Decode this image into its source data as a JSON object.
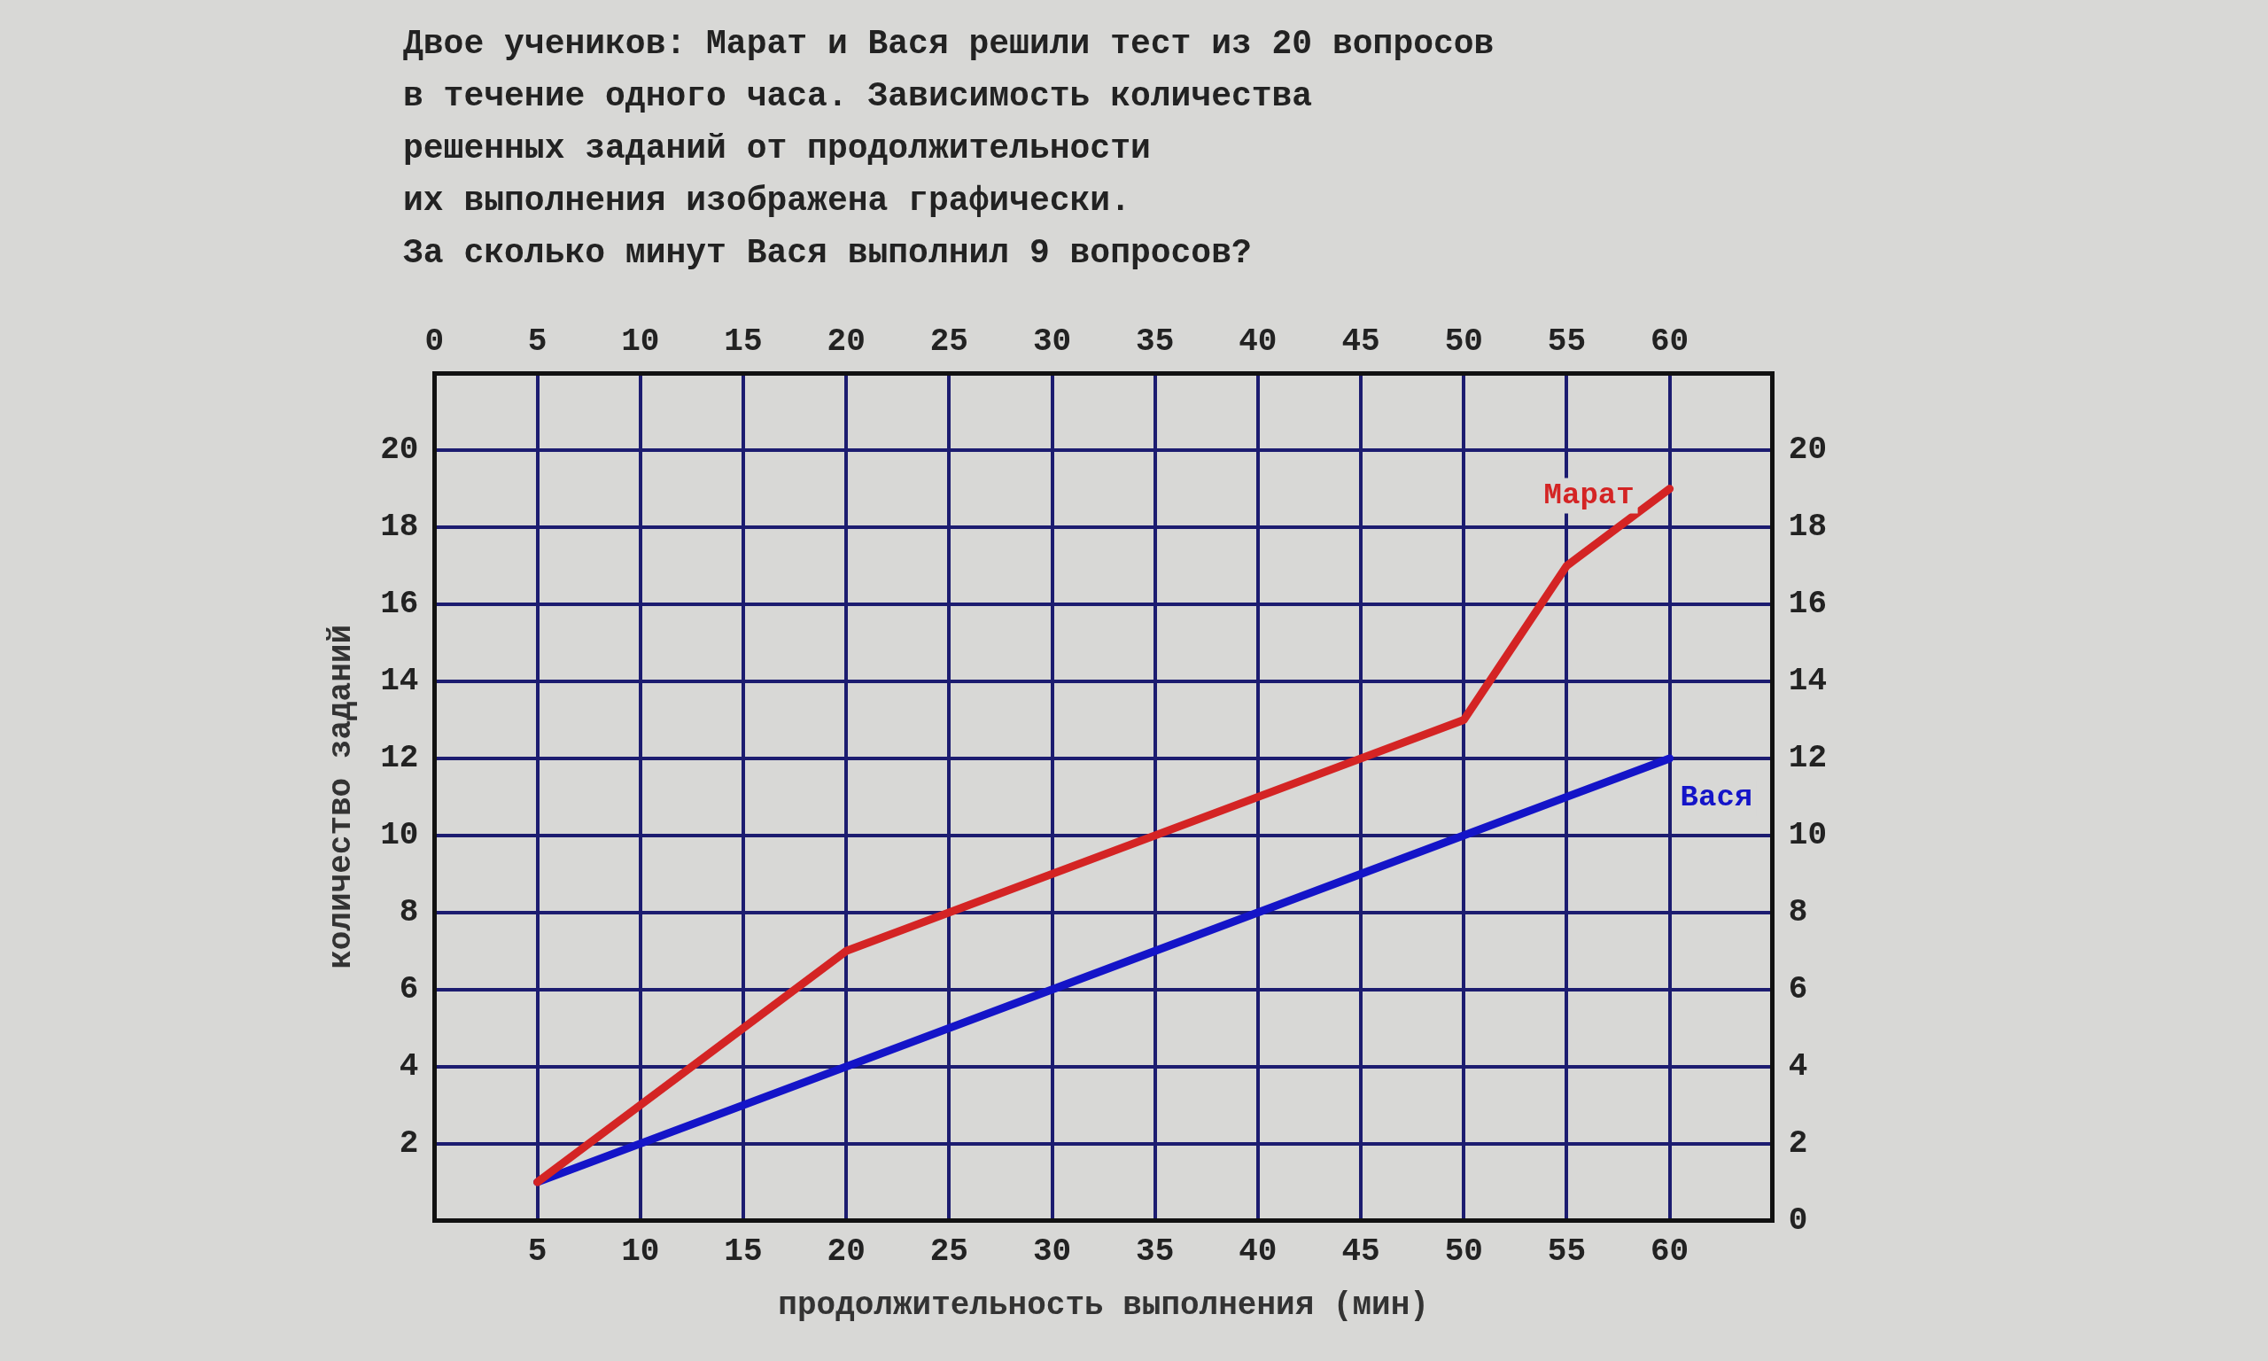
{
  "chart_data": {
    "type": "line",
    "title": "Двое учеников: Марат и Вася решили тест из 20 вопросов\nв течение одного часа. Зависимость количества\nрешенных заданий от продолжительности\nих выполнения изображена графически.\nЗа сколько минут Вася выполнил 9 вопросов?",
    "xlabel": "продолжительность выполнения (мин)",
    "ylabel": "количество заданий",
    "x": [
      5,
      20,
      50,
      55,
      60
    ],
    "series": [
      {
        "name": "Марат",
        "color": "#d42424",
        "values": [
          1,
          7,
          13,
          17,
          19
        ]
      },
      {
        "name": "Вася",
        "color": "#1414c8",
        "x": [
          5,
          60
        ],
        "values": [
          1,
          12
        ]
      }
    ],
    "xlim": [
      0,
      65
    ],
    "xticks": [
      5,
      10,
      15,
      20,
      25,
      30,
      35,
      40,
      45,
      50,
      55,
      60
    ],
    "x2lim": [
      0,
      65
    ],
    "x2ticks": [
      0,
      5,
      10,
      15,
      20,
      25,
      30,
      35,
      40,
      45,
      50,
      55,
      60
    ],
    "ylim": [
      0,
      22
    ],
    "yticks": [
      2,
      4,
      6,
      8,
      10,
      12,
      14,
      16,
      18,
      20
    ],
    "y2lim": [
      0,
      22
    ],
    "y2ticks": [
      0,
      2,
      4,
      6,
      8,
      10,
      12,
      14,
      16,
      18,
      20
    ],
    "grid": true,
    "legend": false,
    "marker": "none",
    "line_style": "solid"
  }
}
